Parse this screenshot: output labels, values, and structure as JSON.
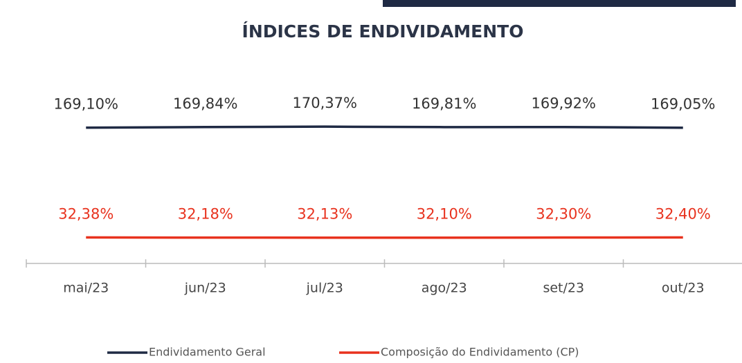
{
  "chart_data": {
    "type": "line",
    "title": "ÍNDICES DE ENDIVIDAMENTO",
    "categories": [
      "mai/23",
      "jun/23",
      "jul/23",
      "ago/23",
      "set/23",
      "out/23"
    ],
    "series": [
      {
        "name": "Endividamento Geral",
        "color": "#1f2a44",
        "values": [
          169.1,
          169.84,
          170.37,
          169.81,
          169.92,
          169.05
        ],
        "value_labels": [
          "169,10%",
          "169,84%",
          "170,37%",
          "169,81%",
          "169,92%",
          "169,05%"
        ]
      },
      {
        "name": "Composição do Endividamento (CP)",
        "color": "#e8321e",
        "values": [
          32.38,
          32.18,
          32.13,
          32.1,
          32.3,
          32.4
        ],
        "value_labels": [
          "32,38%",
          "32,18%",
          "32,13%",
          "32,10%",
          "32,30%",
          "32,40%"
        ]
      }
    ],
    "ylim": [
      0,
      180
    ],
    "legend": "bottom"
  }
}
